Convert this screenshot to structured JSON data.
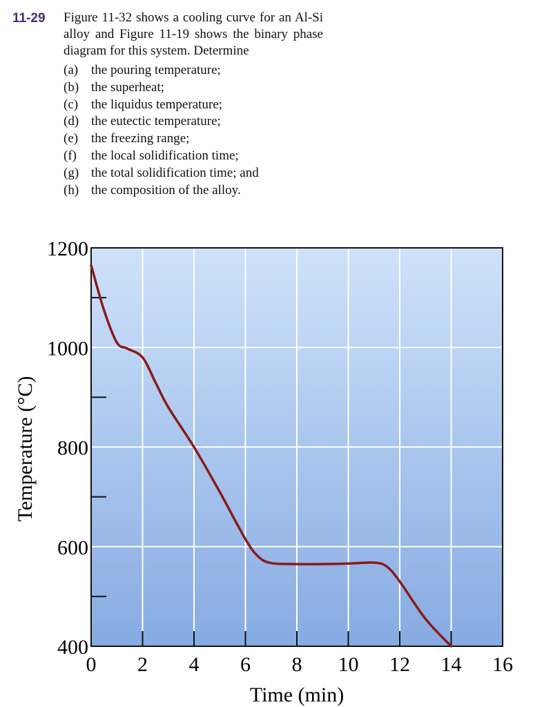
{
  "problem": {
    "number": "11-29",
    "intro": "Figure 11-32 shows a cooling curve for an Al-Si alloy and Figure 11-19 shows the binary phase diagram for this system. Determine",
    "parts": [
      {
        "label": "(a)",
        "text": "the pouring temperature;"
      },
      {
        "label": "(b)",
        "text": "the superheat;"
      },
      {
        "label": "(c)",
        "text": "the liquidus temperature;"
      },
      {
        "label": "(d)",
        "text": "the eutectic temperature;"
      },
      {
        "label": "(e)",
        "text": "the freezing range;"
      },
      {
        "label": "(f)",
        "text": "the local solidification time;"
      },
      {
        "label": "(g)",
        "text": "the total solidification time; and"
      },
      {
        "label": "(h)",
        "text": "the composition of the alloy."
      }
    ]
  },
  "colors": {
    "curve": "#8b1a1a",
    "plot_top": "#cfe2fa",
    "plot_bottom": "#86abe2",
    "grid": "#ffffff",
    "accent_number": "#4a2a7a"
  },
  "chart_data": {
    "type": "line",
    "xlabel": "Time (min)",
    "ylabel": "Temperature (°C)",
    "xlim": [
      0,
      16
    ],
    "ylim": [
      400,
      1200
    ],
    "xticks": [
      0,
      2,
      4,
      6,
      8,
      10,
      12,
      14,
      16
    ],
    "yticks": [
      400,
      600,
      800,
      1000,
      1200
    ],
    "grid": true,
    "series": [
      {
        "x": [
          0,
          0.5,
          1.0,
          1.4,
          2.0,
          2.5,
          3.0,
          4.0,
          5.0,
          6.0,
          6.5,
          7.0,
          8.0,
          9.0,
          10.0,
          11.0,
          11.5,
          12.0,
          13.0,
          14.0
        ],
        "y": [
          1165,
          1075,
          1010,
          998,
          980,
          930,
          880,
          800,
          710,
          615,
          580,
          567,
          565,
          565,
          566,
          568,
          560,
          530,
          455,
          400
        ]
      }
    ]
  }
}
